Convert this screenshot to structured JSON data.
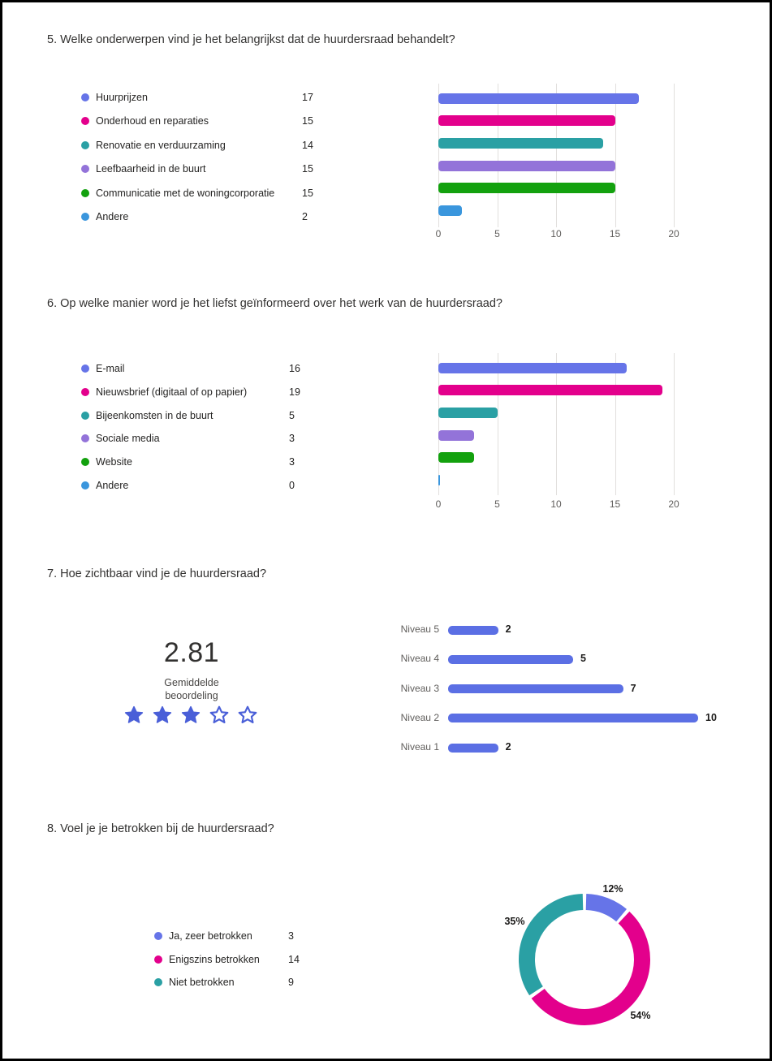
{
  "page": {
    "background": "#ffffff",
    "border_color": "#000000",
    "palette": [
      "#6674e8",
      "#e3008c",
      "#2aa0a4",
      "#9373d9",
      "#13a10e",
      "#3a96dd"
    ],
    "accent_blue": "#5b6fe4",
    "star_color": "#4a5fd8"
  },
  "questions": [
    {
      "number": "5",
      "title": "5. Welke onderwerpen vind je het belangrijkst dat de huurdersraad behandelt?",
      "chart_data": {
        "type": "bar",
        "orientation": "horizontal",
        "categories": [
          "Huurprijzen",
          "Onderhoud en reparaties",
          "Renovatie en verduurzaming",
          "Leefbaarheid in de buurt",
          "Communicatie met de woningcorporatie",
          "Andere"
        ],
        "values": [
          17,
          15,
          14,
          15,
          15,
          2
        ],
        "colors": [
          "#6674e8",
          "#e3008c",
          "#2aa0a4",
          "#9373d9",
          "#13a10e",
          "#3a96dd"
        ],
        "xlim": [
          0,
          20
        ],
        "xticks": [
          0,
          5,
          10,
          15,
          20
        ],
        "grid": true,
        "legend_position": "left"
      }
    },
    {
      "number": "6",
      "title": "6. Op welke manier word je het liefst geïnformeerd over het werk van de huurdersraad?",
      "chart_data": {
        "type": "bar",
        "orientation": "horizontal",
        "categories": [
          "E-mail",
          "Nieuwsbrief (digitaal of op papier)",
          "Bijeenkomsten in de buurt",
          "Sociale media",
          "Website",
          "Andere"
        ],
        "values": [
          16,
          19,
          5,
          3,
          3,
          0
        ],
        "colors": [
          "#6674e8",
          "#e3008c",
          "#2aa0a4",
          "#9373d9",
          "#13a10e",
          "#3a96dd"
        ],
        "xlim": [
          0,
          20
        ],
        "xticks": [
          0,
          5,
          10,
          15,
          20
        ],
        "grid": true,
        "legend_position": "left"
      }
    },
    {
      "number": "7",
      "title": "7. Hoe zichtbaar vind je de huurdersraad?",
      "rating": {
        "average": "2.81",
        "label": "Gemiddelde beoordeling",
        "stars_filled": 3,
        "stars_total": 5
      },
      "chart_data": {
        "type": "bar",
        "orientation": "horizontal",
        "categories": [
          "Niveau 5",
          "Niveau 4",
          "Niveau 3",
          "Niveau 2",
          "Niveau 1"
        ],
        "values": [
          2,
          5,
          7,
          10,
          2
        ],
        "color": "#5b6fe4",
        "value_labels": true,
        "grid": false
      }
    },
    {
      "number": "8",
      "title": "8. Voel je je betrokken bij de huurdersraad?",
      "chart_data": {
        "type": "donut",
        "categories": [
          "Ja, zeer betrokken",
          "Enigszins betrokken",
          "Niet betrokken"
        ],
        "values": [
          3,
          14,
          9
        ],
        "percent_labels": [
          "12%",
          "54%",
          "35%"
        ],
        "colors": [
          "#6674e8",
          "#e3008c",
          "#2aa0a4"
        ],
        "legend_position": "left"
      }
    }
  ]
}
